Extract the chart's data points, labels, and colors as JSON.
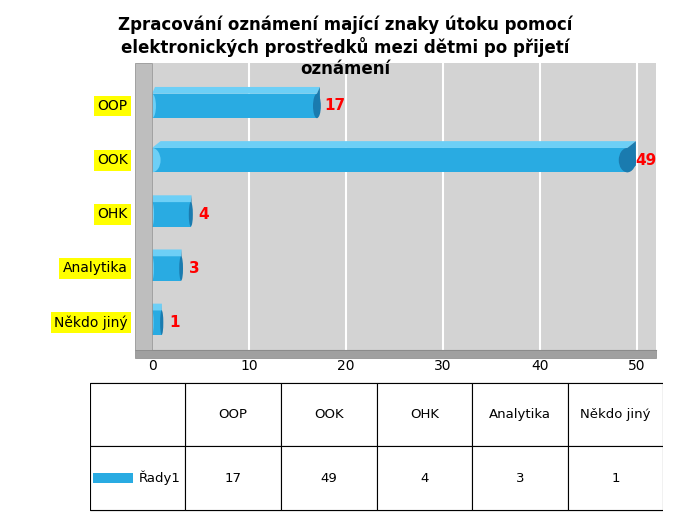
{
  "title": "Zpracování oznámení mající znaky útoku pomocí\nelektronických prostředků mezi dětmi po přijetí\noznámení",
  "categories": [
    "Někdo jiný",
    "Analytika",
    "OHK",
    "OOK",
    "OOP"
  ],
  "values": [
    1,
    3,
    4,
    49,
    17
  ],
  "bar_color_main": "#29ABE2",
  "bar_color_top": "#6DCFF6",
  "bar_color_right": "#1A7BAF",
  "label_color": "#FF0000",
  "ylabel_bg_color": "#FFFF00",
  "wall_color": "#BEBEBE",
  "wall_shadow": "#A0A0A0",
  "plot_bg_color": "#D3D3D3",
  "chart_bg_color": "#FFFFFF",
  "xlim": [
    0,
    52
  ],
  "xticks": [
    0,
    10,
    20,
    30,
    40,
    50
  ],
  "grid_color": "#FFFFFF",
  "table_header": [
    "OOP",
    "OOK",
    "OHK",
    "Analytika",
    "Někdo jiný"
  ],
  "table_row_label": "Řady1",
  "table_values": [
    "17",
    "49",
    "4",
    "3",
    "1"
  ],
  "title_fontsize": 12,
  "tick_fontsize": 10,
  "label_fontsize": 11,
  "bar_height": 0.45
}
